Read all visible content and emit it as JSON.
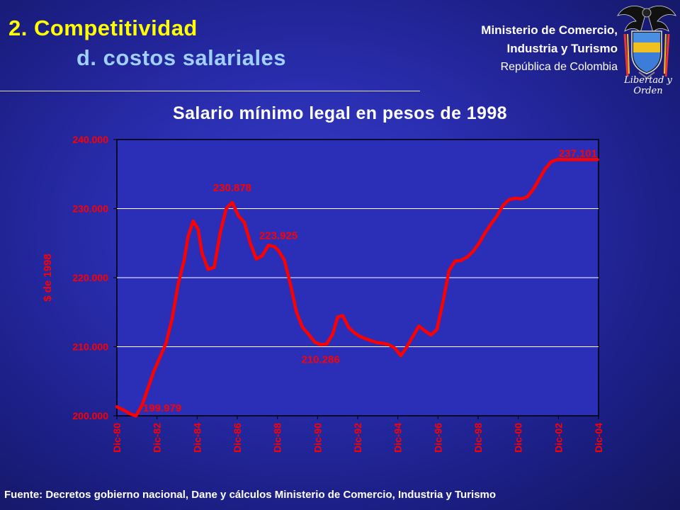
{
  "slide": {
    "title_main": "2. Competitividad",
    "title_sub": "d. costos salariales",
    "ministry_line1": "Ministerio de Comercio,",
    "ministry_line2": "Industria y Turismo",
    "ministry_line3": "República de Colombia",
    "crest_motto": "Libertad y Orden",
    "source": "Fuente: Decretos gobierno nacional, Dane y cálculos Ministerio de Comercio, Industria y Turismo"
  },
  "colors": {
    "background": "#2a2eb0",
    "title": "#ffff00",
    "subtitle": "#9fd0ff",
    "series": "#ff0000",
    "plot_area": "#2b2fb8",
    "grid": "#ffffff"
  },
  "chart_data": {
    "type": "line",
    "title": "Salario mínimo legal en pesos de 1998",
    "ylabel": "$ de 1998",
    "xlabel": "",
    "ylim": [
      200000,
      240000
    ],
    "y_ticks": [
      200000,
      210000,
      220000,
      230000,
      240000
    ],
    "y_tick_labels": [
      "200.000",
      "210.000",
      "220.000",
      "230.000",
      "240.000"
    ],
    "x_tick_labels": [
      "Dic-80",
      "Dic-82",
      "Dic-84",
      "Dic-86",
      "Dic-88",
      "Dic-90",
      "Dic-92",
      "Dic-94",
      "Dic-96",
      "Dic-98",
      "Dic-00",
      "Dic-02",
      "Dic-04"
    ],
    "grid": true,
    "legend": "none",
    "series": [
      {
        "x": [
          1980.95,
          1981.3,
          1981.6,
          1981.9,
          1982.2,
          1982.5,
          1982.8,
          1983.1,
          1983.4,
          1983.7,
          1984.0,
          1984.3,
          1984.5,
          1984.75,
          1985.0,
          1985.2,
          1985.5,
          1985.8,
          1986.1,
          1986.4,
          1986.7,
          1987.0,
          1987.3,
          1987.6,
          1987.9,
          1988.2,
          1988.5,
          1988.8,
          1989.0,
          1989.3,
          1989.6,
          1989.9,
          1990.2,
          1990.5,
          1990.8,
          1991.1,
          1991.4,
          1991.7,
          1991.95,
          1992.2,
          1992.5,
          1992.8,
          1993.0,
          1993.3,
          1993.6,
          1993.9,
          1994.2,
          1994.5,
          1994.8,
          1995.1,
          1995.4,
          1995.7,
          1996.0,
          1996.3,
          1996.6,
          1996.9,
          1997.2,
          1997.5,
          1997.8,
          1998.1,
          1998.4,
          1998.7,
          1999.0,
          1999.3,
          1999.6,
          1999.9,
          2000.2,
          2000.5,
          2000.8,
          2001.1,
          2001.4,
          2001.7,
          2002.0,
          2002.3,
          2002.6,
          2002.9,
          2003.2,
          2003.5,
          2003.8,
          2004.1,
          2004.4,
          2004.7,
          2004.9
        ],
        "y": [
          201300,
          200800,
          200300,
          199979,
          201500,
          204000,
          206500,
          208500,
          210500,
          214000,
          219000,
          222500,
          226000,
          228200,
          227000,
          223500,
          221200,
          221500,
          226500,
          230000,
          230878,
          229000,
          228000,
          225000,
          222700,
          223200,
          224700,
          224500,
          223925,
          222500,
          219000,
          215000,
          212800,
          211800,
          210700,
          210286,
          210400,
          211800,
          214300,
          214500,
          212800,
          212000,
          211600,
          211200,
          210900,
          210600,
          210500,
          210300,
          209800,
          208700,
          210000,
          211500,
          213000,
          212300,
          211700,
          212500,
          216500,
          221000,
          222400,
          222500,
          223000,
          223800,
          225000,
          226500,
          227800,
          229000,
          230500,
          231300,
          231500,
          231400,
          231700,
          232800,
          234300,
          235800,
          236800,
          237101,
          237101,
          237101,
          237101,
          237101,
          237101,
          237101,
          237101
        ]
      }
    ],
    "data_labels": [
      {
        "text": "199.979",
        "x": 1981.9,
        "y": 199979,
        "pos": "right"
      },
      {
        "text": "230.878",
        "x": 1986.7,
        "y": 230878,
        "pos": "above"
      },
      {
        "text": "223.925",
        "x": 1989.0,
        "y": 223925,
        "pos": "above"
      },
      {
        "text": "210.286",
        "x": 1991.1,
        "y": 210286,
        "pos": "below"
      },
      {
        "text": "237.101",
        "x": 2004.9,
        "y": 237101,
        "pos": "above"
      }
    ]
  }
}
